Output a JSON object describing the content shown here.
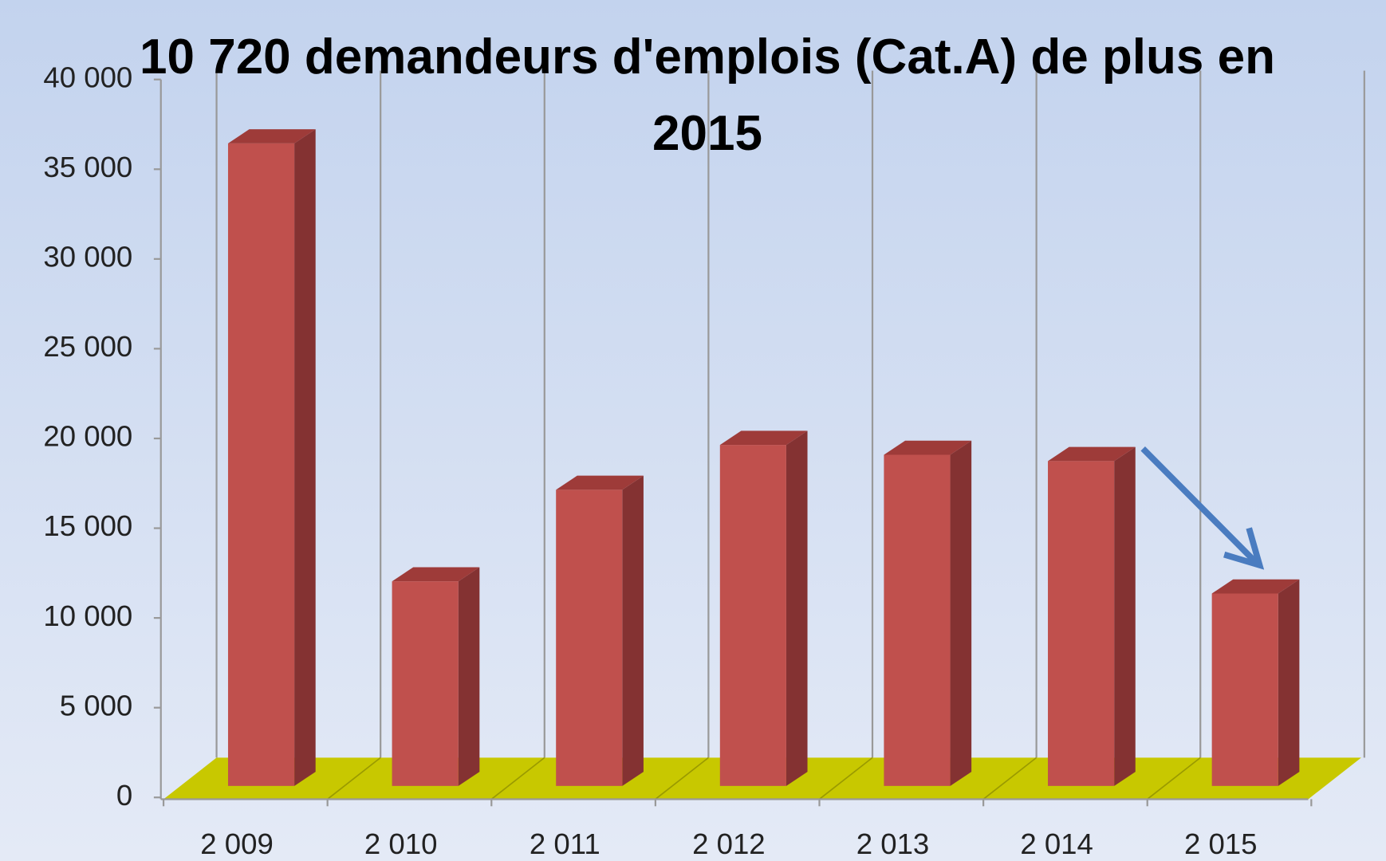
{
  "chart_data": {
    "type": "bar3d",
    "title": "10 720 demandeurs d'emplois (Cat.A) de plus en 2015",
    "categories": [
      "2 009",
      "2 010",
      "2 011",
      "2 012",
      "2 013",
      "2 014",
      "2 015"
    ],
    "values": [
      35800,
      11400,
      16500,
      19000,
      18450,
      18100,
      10720
    ],
    "color": "#c0504d",
    "floor_color": "#c8c800",
    "ylim": [
      0,
      40000
    ],
    "yticks": [
      {
        "value": 0,
        "label": "0"
      },
      {
        "value": 5000,
        "label": "5 000"
      },
      {
        "value": 10000,
        "label": "10 000"
      },
      {
        "value": 15000,
        "label": "15 000"
      },
      {
        "value": 20000,
        "label": "20 000"
      },
      {
        "value": 25000,
        "label": "25 000"
      },
      {
        "value": 30000,
        "label": "30 000"
      },
      {
        "value": 35000,
        "label": "35 000"
      },
      {
        "value": 40000,
        "label": "40 000"
      }
    ],
    "grid": false
  }
}
